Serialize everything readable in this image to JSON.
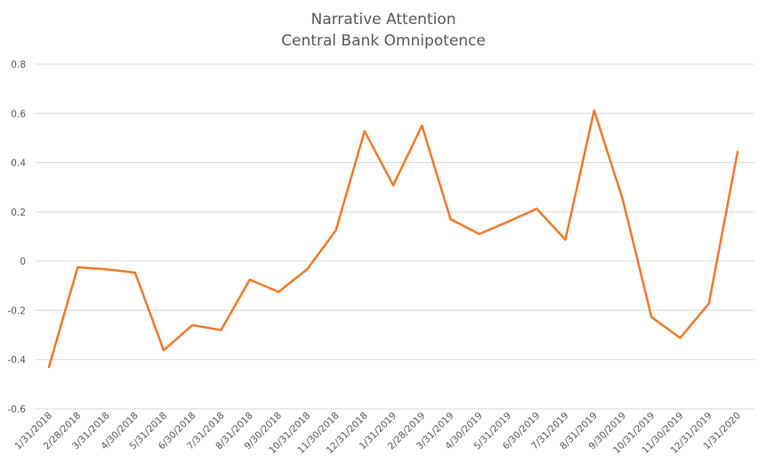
{
  "chart_data": {
    "type": "line",
    "title": [
      "Narrative Attention",
      "Central Bank Omnipotence"
    ],
    "xlabel": "",
    "ylabel": "",
    "ylim": [
      -0.6,
      0.8
    ],
    "yticks": [
      "0.8",
      "0.6",
      "0.4",
      "0.2",
      "0",
      "-0.2",
      "-0.4",
      "-0.6"
    ],
    "ytick_values": [
      0.8,
      0.6,
      0.4,
      0.2,
      0,
      -0.2,
      -0.4,
      -0.6
    ],
    "grid": true,
    "legend": "none",
    "categories": [
      "1/31/2018",
      "2/28/2018",
      "3/31/2018",
      "4/30/2018",
      "5/31/2018",
      "6/30/2018",
      "7/31/2018",
      "8/31/2018",
      "9/30/2018",
      "10/31/2018",
      "11/30/2018",
      "12/31/2018",
      "1/31/2019",
      "2/28/2019",
      "3/31/2019",
      "4/30/2019",
      "5/31/2019",
      "6/30/2019",
      "7/31/2019",
      "8/31/2019",
      "9/30/2019",
      "10/31/2019",
      "11/30/2019",
      "12/31/2019",
      "1/31/2020"
    ],
    "series": [
      {
        "color": "#ED7D31",
        "values": [
          -0.43,
          -0.025,
          -0.033,
          -0.047,
          -0.362,
          -0.26,
          -0.28,
          -0.075,
          -0.125,
          -0.033,
          0.125,
          0.528,
          0.308,
          0.55,
          0.17,
          0.11,
          0.16,
          0.213,
          0.087,
          0.612,
          0.25,
          -0.227,
          -0.312,
          -0.172,
          0.443
        ]
      }
    ]
  }
}
